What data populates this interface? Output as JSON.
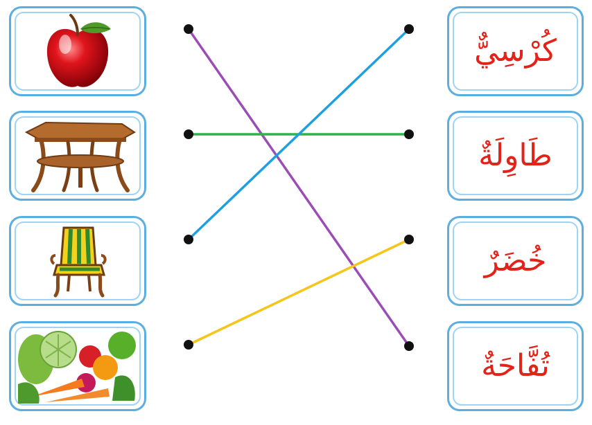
{
  "pictures": [
    {
      "id": "apple",
      "icon": "apple-icon"
    },
    {
      "id": "table",
      "icon": "table-icon"
    },
    {
      "id": "chair",
      "icon": "chair-icon"
    },
    {
      "id": "vegetables",
      "icon": "vegetables-icon"
    }
  ],
  "words": [
    {
      "text": "كُرْسِيٌّ"
    },
    {
      "text": "طَاوِلَةٌ"
    },
    {
      "text": "خُضَرٌ"
    },
    {
      "text": "تُفَّاحَةٌ"
    }
  ],
  "connections": [
    {
      "from": 0,
      "to": 3,
      "color": "#9b4db5"
    },
    {
      "from": 1,
      "to": 1,
      "color": "#2db34a"
    },
    {
      "from": 2,
      "to": 0,
      "color": "#1ea0e0"
    },
    {
      "from": 3,
      "to": 2,
      "color": "#f5c518"
    }
  ],
  "colors": {
    "card_border": "#5aaee0",
    "word_text": "#e2231a",
    "dot": "#111111"
  }
}
